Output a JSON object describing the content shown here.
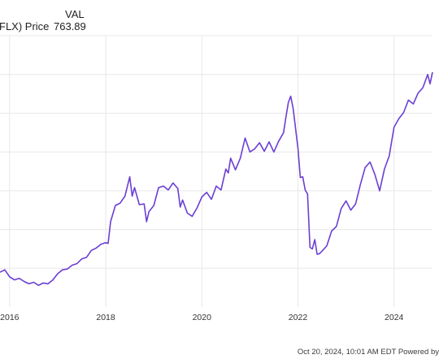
{
  "legend": {
    "series_label": "FLX) Price",
    "val_header": "VAL",
    "val_value": "763.89"
  },
  "footer": {
    "text": "Oct 20, 2024, 10:01 AM EDT Powered by"
  },
  "colors": {
    "line": "#6a3fd4",
    "grid": "#e8e8e8",
    "axis_text": "#333333"
  },
  "chart_data": {
    "type": "line",
    "title": "",
    "xlabel": "",
    "ylabel": "",
    "x_tick_labels": [
      "2016",
      "2018",
      "2020",
      "2022",
      "2024"
    ],
    "x_tick_values": [
      2016,
      2018,
      2020,
      2022,
      2024
    ],
    "xlim": [
      2015.8,
      2024.8
    ],
    "ylim": [
      0,
      7
    ],
    "grid": true,
    "series": [
      {
        "values": [
          [
            2015.8,
            0.9
          ],
          [
            2015.9,
            0.96
          ],
          [
            2016.0,
            0.78
          ],
          [
            2016.1,
            0.7
          ],
          [
            2016.2,
            0.74
          ],
          [
            2016.3,
            0.66
          ],
          [
            2016.4,
            0.6
          ],
          [
            2016.5,
            0.64
          ],
          [
            2016.6,
            0.56
          ],
          [
            2016.7,
            0.62
          ],
          [
            2016.8,
            0.6
          ],
          [
            2016.9,
            0.7
          ],
          [
            2017.0,
            0.86
          ],
          [
            2017.1,
            0.96
          ],
          [
            2017.2,
            0.98
          ],
          [
            2017.3,
            1.08
          ],
          [
            2017.4,
            1.12
          ],
          [
            2017.5,
            1.24
          ],
          [
            2017.6,
            1.28
          ],
          [
            2017.7,
            1.46
          ],
          [
            2017.8,
            1.52
          ],
          [
            2017.9,
            1.62
          ],
          [
            2018.0,
            1.66
          ],
          [
            2018.05,
            1.64
          ],
          [
            2018.1,
            2.2
          ],
          [
            2018.2,
            2.62
          ],
          [
            2018.3,
            2.68
          ],
          [
            2018.4,
            2.86
          ],
          [
            2018.5,
            3.36
          ],
          [
            2018.55,
            2.86
          ],
          [
            2018.6,
            3.08
          ],
          [
            2018.7,
            2.64
          ],
          [
            2018.8,
            2.66
          ],
          [
            2018.85,
            2.2
          ],
          [
            2018.9,
            2.46
          ],
          [
            2019.0,
            2.62
          ],
          [
            2019.1,
            3.08
          ],
          [
            2019.2,
            3.12
          ],
          [
            2019.3,
            3.02
          ],
          [
            2019.4,
            3.2
          ],
          [
            2019.5,
            3.06
          ],
          [
            2019.55,
            2.58
          ],
          [
            2019.6,
            2.76
          ],
          [
            2019.7,
            2.42
          ],
          [
            2019.8,
            2.34
          ],
          [
            2019.9,
            2.56
          ],
          [
            2020.0,
            2.84
          ],
          [
            2020.1,
            2.96
          ],
          [
            2020.2,
            2.78
          ],
          [
            2020.3,
            3.12
          ],
          [
            2020.4,
            3.02
          ],
          [
            2020.5,
            3.56
          ],
          [
            2020.55,
            3.46
          ],
          [
            2020.6,
            3.84
          ],
          [
            2020.7,
            3.54
          ],
          [
            2020.8,
            3.84
          ],
          [
            2020.9,
            4.36
          ],
          [
            2021.0,
            4.0
          ],
          [
            2021.1,
            4.08
          ],
          [
            2021.2,
            4.24
          ],
          [
            2021.3,
            4.02
          ],
          [
            2021.4,
            4.26
          ],
          [
            2021.5,
            4.0
          ],
          [
            2021.6,
            4.28
          ],
          [
            2021.7,
            4.5
          ],
          [
            2021.75,
            4.9
          ],
          [
            2021.8,
            5.28
          ],
          [
            2021.85,
            5.44
          ],
          [
            2021.9,
            5.12
          ],
          [
            2021.95,
            4.62
          ],
          [
            2022.0,
            4.1
          ],
          [
            2022.05,
            3.34
          ],
          [
            2022.1,
            3.36
          ],
          [
            2022.15,
            3.02
          ],
          [
            2022.2,
            2.92
          ],
          [
            2022.25,
            1.54
          ],
          [
            2022.3,
            1.5
          ],
          [
            2022.35,
            1.74
          ],
          [
            2022.4,
            1.36
          ],
          [
            2022.45,
            1.38
          ],
          [
            2022.5,
            1.44
          ],
          [
            2022.6,
            1.58
          ],
          [
            2022.7,
            1.96
          ],
          [
            2022.8,
            2.08
          ],
          [
            2022.9,
            2.54
          ],
          [
            2023.0,
            2.74
          ],
          [
            2023.1,
            2.5
          ],
          [
            2023.2,
            2.66
          ],
          [
            2023.3,
            3.16
          ],
          [
            2023.4,
            3.6
          ],
          [
            2023.5,
            3.74
          ],
          [
            2023.6,
            3.42
          ],
          [
            2023.7,
            3.0
          ],
          [
            2023.8,
            3.56
          ],
          [
            2023.9,
            3.9
          ],
          [
            2024.0,
            4.64
          ],
          [
            2024.1,
            4.86
          ],
          [
            2024.2,
            5.02
          ],
          [
            2024.3,
            5.34
          ],
          [
            2024.4,
            5.24
          ],
          [
            2024.5,
            5.52
          ],
          [
            2024.6,
            5.66
          ],
          [
            2024.7,
            6.0
          ],
          [
            2024.75,
            5.76
          ],
          [
            2024.8,
            6.06
          ]
        ]
      }
    ]
  }
}
